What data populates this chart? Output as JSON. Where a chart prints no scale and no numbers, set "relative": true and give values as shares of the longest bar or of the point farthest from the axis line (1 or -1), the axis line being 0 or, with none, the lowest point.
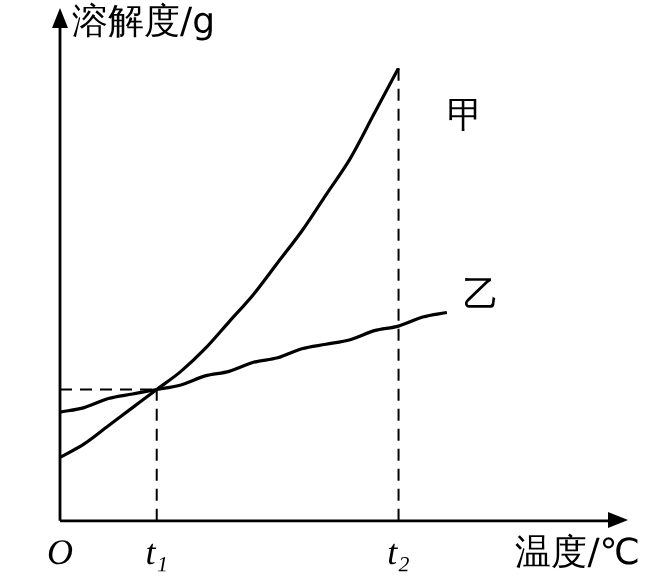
{
  "chart_data": {
    "type": "line",
    "relative": true,
    "xlabel": "温度/℃",
    "ylabel": "溶解度/g",
    "categories": [
      "O",
      null,
      null,
      null,
      "t₁",
      null,
      null,
      null,
      null,
      null,
      null,
      null,
      null,
      null,
      "t₂",
      null,
      null,
      null,
      null,
      null,
      null,
      null,
      null
    ],
    "series": [
      {
        "name": "甲",
        "color": "#000000",
        "values": [
          0.14,
          0.17,
          0.21,
          0.25,
          0.29,
          0.33,
          0.38,
          0.44,
          0.5,
          0.57,
          0.64,
          0.72,
          0.8,
          0.9,
          1,
          null,
          null,
          null,
          null,
          null,
          null,
          null,
          null
        ]
      },
      {
        "name": "乙",
        "color": "#000000",
        "values": [
          0.24,
          0.25,
          0.27,
          0.28,
          0.29,
          0.3,
          0.32,
          0.33,
          0.35,
          0.36,
          0.38,
          0.39,
          0.4,
          0.42,
          0.43,
          0.45,
          0.46,
          null,
          null,
          null,
          null,
          null,
          null
        ]
      }
    ],
    "ref_lines": [
      {
        "axis": "x",
        "value": "t₁",
        "line_style": "dashed"
      },
      {
        "axis": "x",
        "value": "t₂",
        "line_style": "dashed"
      },
      {
        "axis": "y",
        "value": 0.29,
        "line_style": "dashed"
      }
    ],
    "grid": false,
    "legend": false,
    "marker": "none",
    "line_style": "solid"
  }
}
